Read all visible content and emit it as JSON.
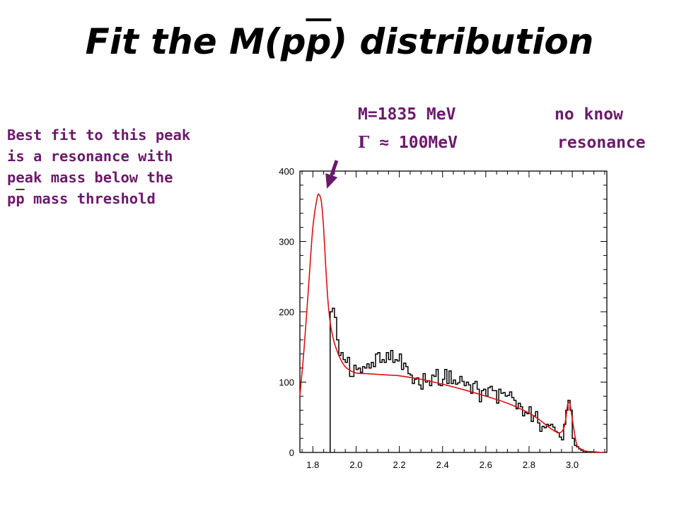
{
  "slide": {
    "title_prefix": "Fit the M(p",
    "title_pbar": "p",
    "title_suffix": ") distribution"
  },
  "note": {
    "line1": "Best fit to this peak",
    "line2": "is a resonance with",
    "line3": "peak mass below the",
    "line4_p1": "p",
    "line4_pbar": "p",
    "line4_rest": " mass threshold"
  },
  "annotations": {
    "mass": "M=1835 MeV",
    "width_symbol": "Γ",
    "width_rest": " ≈ 100MeV",
    "no_know": "no know",
    "resonance": "resonance"
  },
  "chart_data": {
    "type": "line",
    "title": "",
    "xlabel": "",
    "ylabel": "",
    "xlim": [
      1.74,
      3.16
    ],
    "ylim": [
      0,
      400
    ],
    "x_ticks": [
      "1.8",
      "2.0",
      "2.2",
      "2.4",
      "2.6",
      "2.8",
      "3.0"
    ],
    "y_ticks": [
      "0",
      "100",
      "200",
      "300",
      "400"
    ],
    "grid": false,
    "colors": {
      "data": "#000000",
      "fit": "#dd1111",
      "arrow": "#6b1a6b"
    },
    "series": [
      {
        "style": "histogram",
        "color": "#000000",
        "x": [
          1.88,
          1.89,
          1.9,
          1.91,
          1.92,
          1.93,
          1.94,
          1.95,
          1.96,
          1.97,
          1.98,
          1.99,
          2.0,
          2.01,
          2.02,
          2.03,
          2.04,
          2.05,
          2.06,
          2.07,
          2.08,
          2.09,
          2.1,
          2.11,
          2.12,
          2.13,
          2.14,
          2.15,
          2.16,
          2.17,
          2.18,
          2.19,
          2.2,
          2.21,
          2.22,
          2.23,
          2.24,
          2.25,
          2.26,
          2.27,
          2.28,
          2.29,
          2.3,
          2.31,
          2.32,
          2.33,
          2.34,
          2.35,
          2.36,
          2.37,
          2.38,
          2.39,
          2.4,
          2.41,
          2.42,
          2.43,
          2.44,
          2.45,
          2.46,
          2.47,
          2.48,
          2.49,
          2.5,
          2.51,
          2.52,
          2.53,
          2.54,
          2.55,
          2.56,
          2.57,
          2.58,
          2.59,
          2.6,
          2.61,
          2.62,
          2.63,
          2.64,
          2.65,
          2.66,
          2.67,
          2.68,
          2.69,
          2.7,
          2.71,
          2.72,
          2.73,
          2.74,
          2.75,
          2.76,
          2.77,
          2.78,
          2.79,
          2.8,
          2.81,
          2.82,
          2.83,
          2.84,
          2.85,
          2.86,
          2.87,
          2.88,
          2.89,
          2.9,
          2.91,
          2.92,
          2.93,
          2.94,
          2.95,
          2.96,
          2.97,
          2.98,
          2.99,
          3.0,
          3.01,
          3.02,
          3.03,
          3.04,
          3.05,
          3.06
        ],
        "values": [
          200,
          205,
          192,
          160,
          138,
          142,
          132,
          128,
          135,
          108,
          108,
          124,
          118,
          120,
          114,
          122,
          120,
          126,
          120,
          128,
          122,
          140,
          142,
          128,
          132,
          128,
          142,
          132,
          145,
          128,
          132,
          130,
          140,
          118,
          127,
          122,
          112,
          110,
          98,
          104,
          106,
          96,
          90,
          112,
          100,
          102,
          95,
          110,
          108,
          118,
          96,
          95,
          104,
          118,
          98,
          116,
          98,
          103,
          97,
          99,
          108,
          101,
          95,
          100,
          96,
          84,
          98,
          101,
          90,
          72,
          88,
          90,
          80,
          92,
          94,
          88,
          88,
          70,
          90,
          84,
          85,
          80,
          81,
          86,
          78,
          74,
          62,
          70,
          65,
          52,
          57,
          55,
          65,
          44,
          52,
          58,
          42,
          30,
          37,
          35,
          40,
          38,
          40,
          36,
          30,
          28,
          22,
          18,
          40,
          60,
          74,
          60,
          20,
          10,
          8,
          5,
          3,
          2,
          1
        ]
      },
      {
        "style": "curve",
        "color": "#dd1111",
        "x": [
          1.74,
          1.76,
          1.78,
          1.8,
          1.82,
          1.83,
          1.84,
          1.85,
          1.86,
          1.87,
          1.88,
          1.89,
          1.9,
          1.92,
          1.94,
          1.96,
          2.0,
          2.05,
          2.1,
          2.15,
          2.2,
          2.3,
          2.4,
          2.5,
          2.6,
          2.7,
          2.8,
          2.85,
          2.9,
          2.94,
          2.96,
          2.97,
          2.98,
          2.99,
          3.0,
          3.02,
          3.04,
          3.06,
          3.1,
          3.14
        ],
        "values": [
          80,
          150,
          235,
          320,
          362,
          366,
          355,
          318,
          262,
          215,
          185,
          168,
          155,
          138,
          126,
          119,
          113,
          112,
          111,
          110,
          109,
          104,
          97,
          89,
          80,
          70,
          56,
          46,
          34,
          28,
          34,
          48,
          70,
          68,
          48,
          12,
          5,
          2,
          1,
          0
        ]
      }
    ],
    "arrow": {
      "from": [
        1.91,
        415
      ],
      "to": [
        1.865,
        375
      ]
    }
  }
}
